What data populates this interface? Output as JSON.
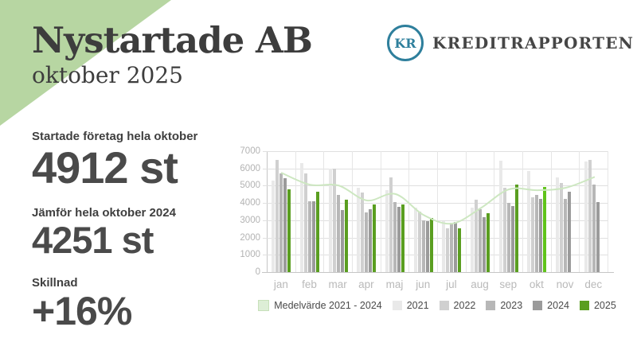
{
  "header": {
    "title": "Nystartade AB",
    "subtitle": "oktober 2025"
  },
  "logo": {
    "initials": "KR",
    "brand": "KREDITRAPPORTEN"
  },
  "stats": [
    {
      "label": "Startade företag hela oktober",
      "value": "4912 st"
    },
    {
      "label": "Jämför hela oktober 2024",
      "value": "4251 st"
    },
    {
      "label": "Skillnad",
      "value": "+16%"
    }
  ],
  "theme": {
    "accent_green": "#b7d6a2",
    "brand_teal": "#2e7f9c",
    "text_dark": "#3d3d3d",
    "highlight_green": "#5fc31a"
  },
  "chart_data": {
    "type": "bar",
    "subtype": "grouped bars with average line",
    "categories": [
      "jan",
      "feb",
      "mar",
      "apr",
      "maj",
      "jun",
      "jul",
      "aug",
      "sep",
      "okt",
      "nov",
      "dec"
    ],
    "series": [
      {
        "name": "2021",
        "color": "#e9e9e9",
        "values": [
          5300,
          6300,
          6000,
          4880,
          4750,
          3750,
          2950,
          3750,
          6450,
          5870,
          5470,
          6400
        ]
      },
      {
        "name": "2022",
        "color": "#d0d0d0",
        "values": [
          6500,
          5700,
          6000,
          4600,
          5480,
          3500,
          2550,
          4180,
          4880,
          4350,
          5150,
          6480
        ]
      },
      {
        "name": "2023",
        "color": "#b7b7b7",
        "values": [
          5700,
          4100,
          4450,
          3450,
          4050,
          3000,
          2850,
          3650,
          4000,
          4480,
          4250,
          5050
        ]
      },
      {
        "name": "2024",
        "color": "#9b9b9b",
        "values": [
          5450,
          4120,
          3600,
          3650,
          3800,
          2950,
          2880,
          3200,
          3830,
          4251,
          4650,
          4050
        ]
      },
      {
        "name": "2025",
        "color": "#5a9e20",
        "highlight": {
          "index": 9,
          "color": "#5fc31a"
        },
        "values": [
          4800,
          4650,
          4200,
          3930,
          3930,
          3150,
          2550,
          3400,
          5080,
          4912,
          null,
          null
        ]
      }
    ],
    "line": {
      "name": "Medelvärde 2021 - 2024",
      "color": "#cde7c1",
      "values": [
        5738,
        5055,
        5013,
        4145,
        4520,
        3300,
        2808,
        3695,
        4790,
        4738,
        4880,
        5495
      ]
    },
    "ylim": [
      0,
      7000
    ],
    "yticks": [
      0,
      1000,
      2000,
      3000,
      4000,
      5000,
      6000,
      7000
    ],
    "grid": "horizontal and vertical, light gray",
    "legend_position": "bottom center",
    "legend": [
      {
        "label": "Medelvärde 2021 - 2024",
        "color": "#ddeed6",
        "border": "#c7e0ba"
      },
      {
        "label": "2021",
        "color": "#e9e9e9"
      },
      {
        "label": "2022",
        "color": "#d0d0d0"
      },
      {
        "label": "2023",
        "color": "#b7b7b7"
      },
      {
        "label": "2024",
        "color": "#9b9b9b"
      },
      {
        "label": "2025",
        "color": "#5a9e20"
      }
    ]
  }
}
